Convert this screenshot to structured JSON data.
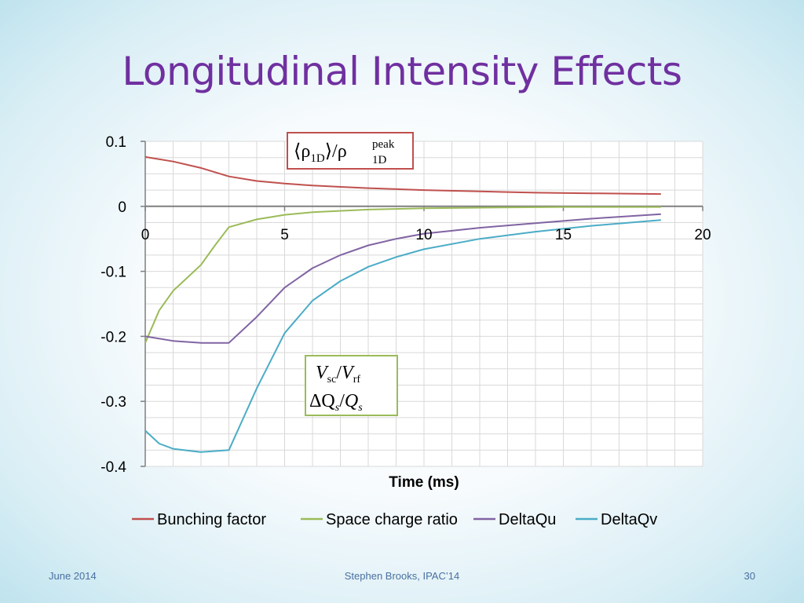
{
  "slide": {
    "title": "Longitudinal Intensity Effects",
    "footer_left": "June 2014",
    "footer_center": "Stephen Brooks, IPAC’14",
    "footer_right": "30"
  },
  "colors": {
    "title": "#7030a0",
    "footer": "#4a6fa0",
    "bunching": "#c0504d",
    "space_charge": "#9bbb59",
    "deltaqu": "#8064a2",
    "deltaqv": "#4bacc6",
    "annotation_red": "#c0504d",
    "annotation_green": "#9bbb59"
  },
  "chart_data": {
    "type": "line",
    "xlabel": "Time (ms)",
    "ylabel": "",
    "xlim": [
      0,
      20
    ],
    "ylim": [
      -0.4,
      0.1
    ],
    "x_ticks": [
      0,
      5,
      10,
      15,
      20
    ],
    "y_ticks": [
      0.1,
      0,
      -0.1,
      -0.2,
      -0.3,
      -0.4
    ],
    "x_tick_labels": [
      "0",
      "5",
      "10",
      "15",
      "20"
    ],
    "y_tick_labels": [
      "0.1",
      "0",
      "-0.1",
      "-0.2",
      "-0.3",
      "-0.4"
    ],
    "grid": true,
    "legend_position": "bottom",
    "annotations": {
      "red_box": {
        "base": "⟨ρ",
        "base_sub": "1D",
        "mid": "⟩/ρ",
        "sup": "peak",
        "sub": "1D"
      },
      "green_box": {
        "line1": {
          "v1": "V",
          "s1": "sc",
          "slash": "/",
          "v2": "V",
          "s2": "rf"
        },
        "line2": {
          "v1": "ΔQ",
          "s1": "s",
          "slash": "/",
          "v2": "Q",
          "s2": "s"
        }
      }
    },
    "series": [
      {
        "name": "Bunching factor",
        "color": "#c0504d",
        "x": [
          0,
          1,
          2,
          3,
          4,
          5,
          6,
          7,
          8,
          10,
          12,
          14,
          16,
          18.5
        ],
        "y": [
          0.076,
          0.069,
          0.059,
          0.046,
          0.039,
          0.035,
          0.032,
          0.03,
          0.028,
          0.025,
          0.023,
          0.021,
          0.02,
          0.019
        ]
      },
      {
        "name": "Space charge ratio",
        "color": "#9bbb59",
        "x": [
          0,
          0.5,
          1,
          1.5,
          2,
          2.5,
          3,
          4,
          5,
          6,
          8,
          10,
          12,
          15,
          18.5
        ],
        "y": [
          -0.21,
          -0.16,
          -0.13,
          -0.11,
          -0.09,
          -0.06,
          -0.032,
          -0.02,
          -0.013,
          -0.009,
          -0.005,
          -0.003,
          -0.002,
          -0.001,
          -0.001
        ]
      },
      {
        "name": "DeltaQu",
        "color": "#8064a2",
        "x": [
          0,
          1,
          2,
          3,
          4,
          5,
          6,
          7,
          8,
          9,
          10,
          12,
          14,
          16,
          18.5
        ],
        "y": [
          -0.2,
          -0.207,
          -0.21,
          -0.21,
          -0.17,
          -0.125,
          -0.095,
          -0.075,
          -0.06,
          -0.05,
          -0.042,
          -0.033,
          -0.026,
          -0.019,
          -0.012
        ]
      },
      {
        "name": "DeltaQv",
        "color": "#4bacc6",
        "x": [
          0,
          0.5,
          1,
          2,
          3,
          4,
          5,
          6,
          7,
          8,
          9,
          10,
          12,
          14,
          16,
          18.5
        ],
        "y": [
          -0.345,
          -0.365,
          -0.373,
          -0.378,
          -0.375,
          -0.28,
          -0.195,
          -0.145,
          -0.115,
          -0.093,
          -0.078,
          -0.066,
          -0.05,
          -0.039,
          -0.03,
          -0.021
        ]
      }
    ]
  }
}
